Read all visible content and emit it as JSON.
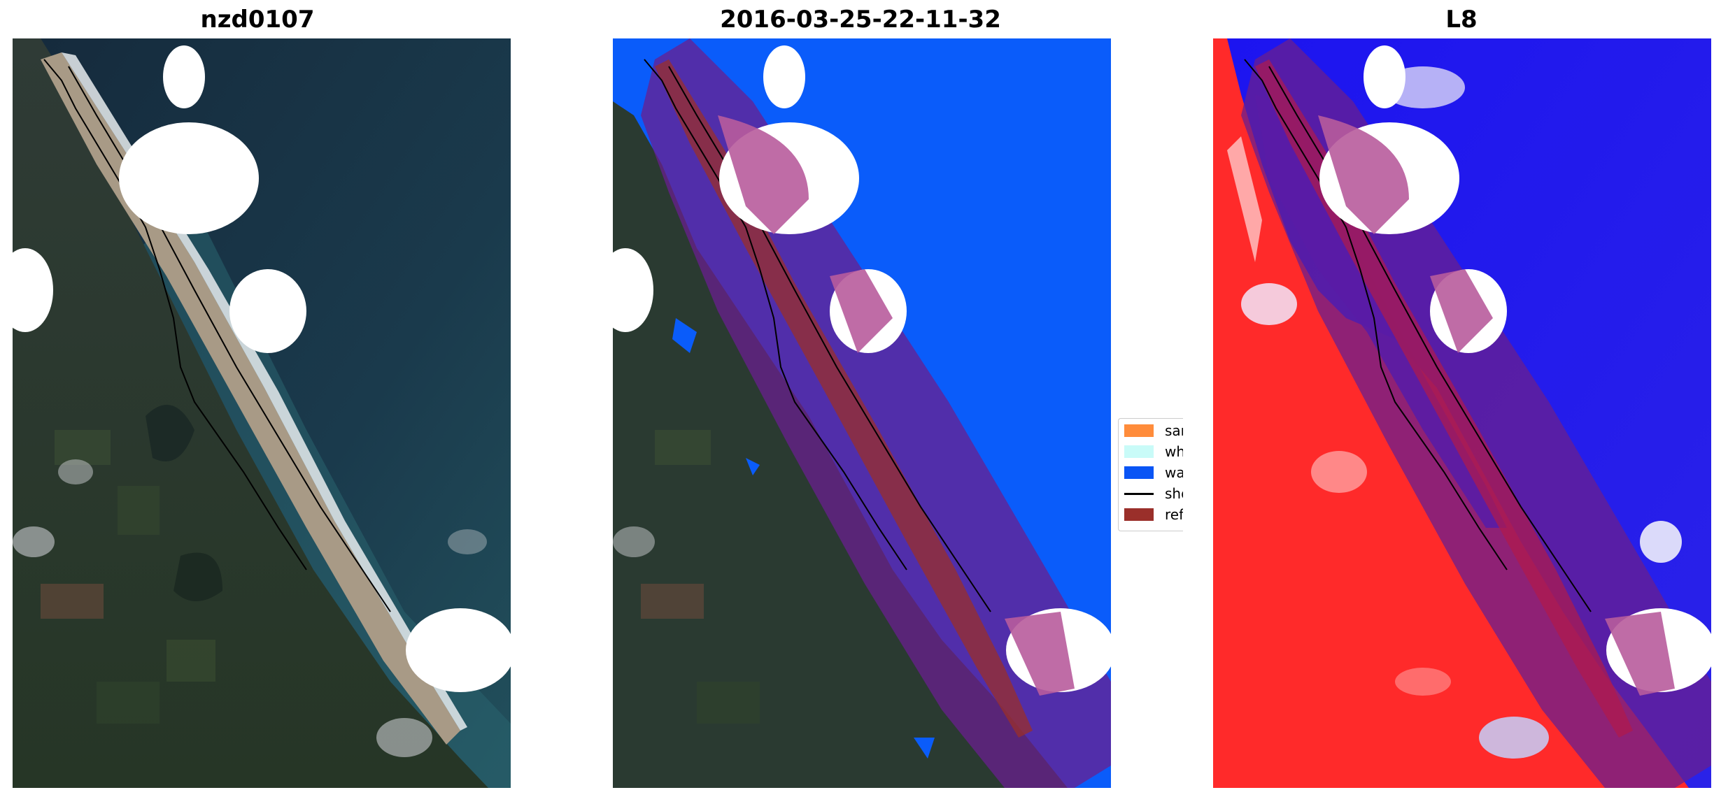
{
  "panels": [
    {
      "title": "nzd0107",
      "kind": "rgb"
    },
    {
      "title": "2016-03-25-22-11-32",
      "kind": "classified"
    },
    {
      "title": "L8",
      "kind": "index"
    }
  ],
  "legend": {
    "items": [
      {
        "label": "sand",
        "color": "#ff8c3b",
        "type": "patch"
      },
      {
        "label": "whitew",
        "color": "#c9fbf8",
        "type": "patch"
      },
      {
        "label": "water",
        "color": "#0a55f5",
        "type": "patch"
      },
      {
        "label": "shoreli",
        "color": "#000000",
        "type": "line"
      },
      {
        "label": "referen",
        "color": "#9a2f2a",
        "type": "patch"
      }
    ]
  },
  "colors": {
    "sea_dark": "#163246",
    "land_green": "#2c3e2b",
    "beach_sand": "#a89a86",
    "surf_white": "#e8ecef",
    "water_class": "#0a5cfa",
    "reference_buffer": "#6a1f8f",
    "index_red": "#ff2020",
    "index_blue": "#2a12e8",
    "cloud_mask": "#ffffff"
  }
}
